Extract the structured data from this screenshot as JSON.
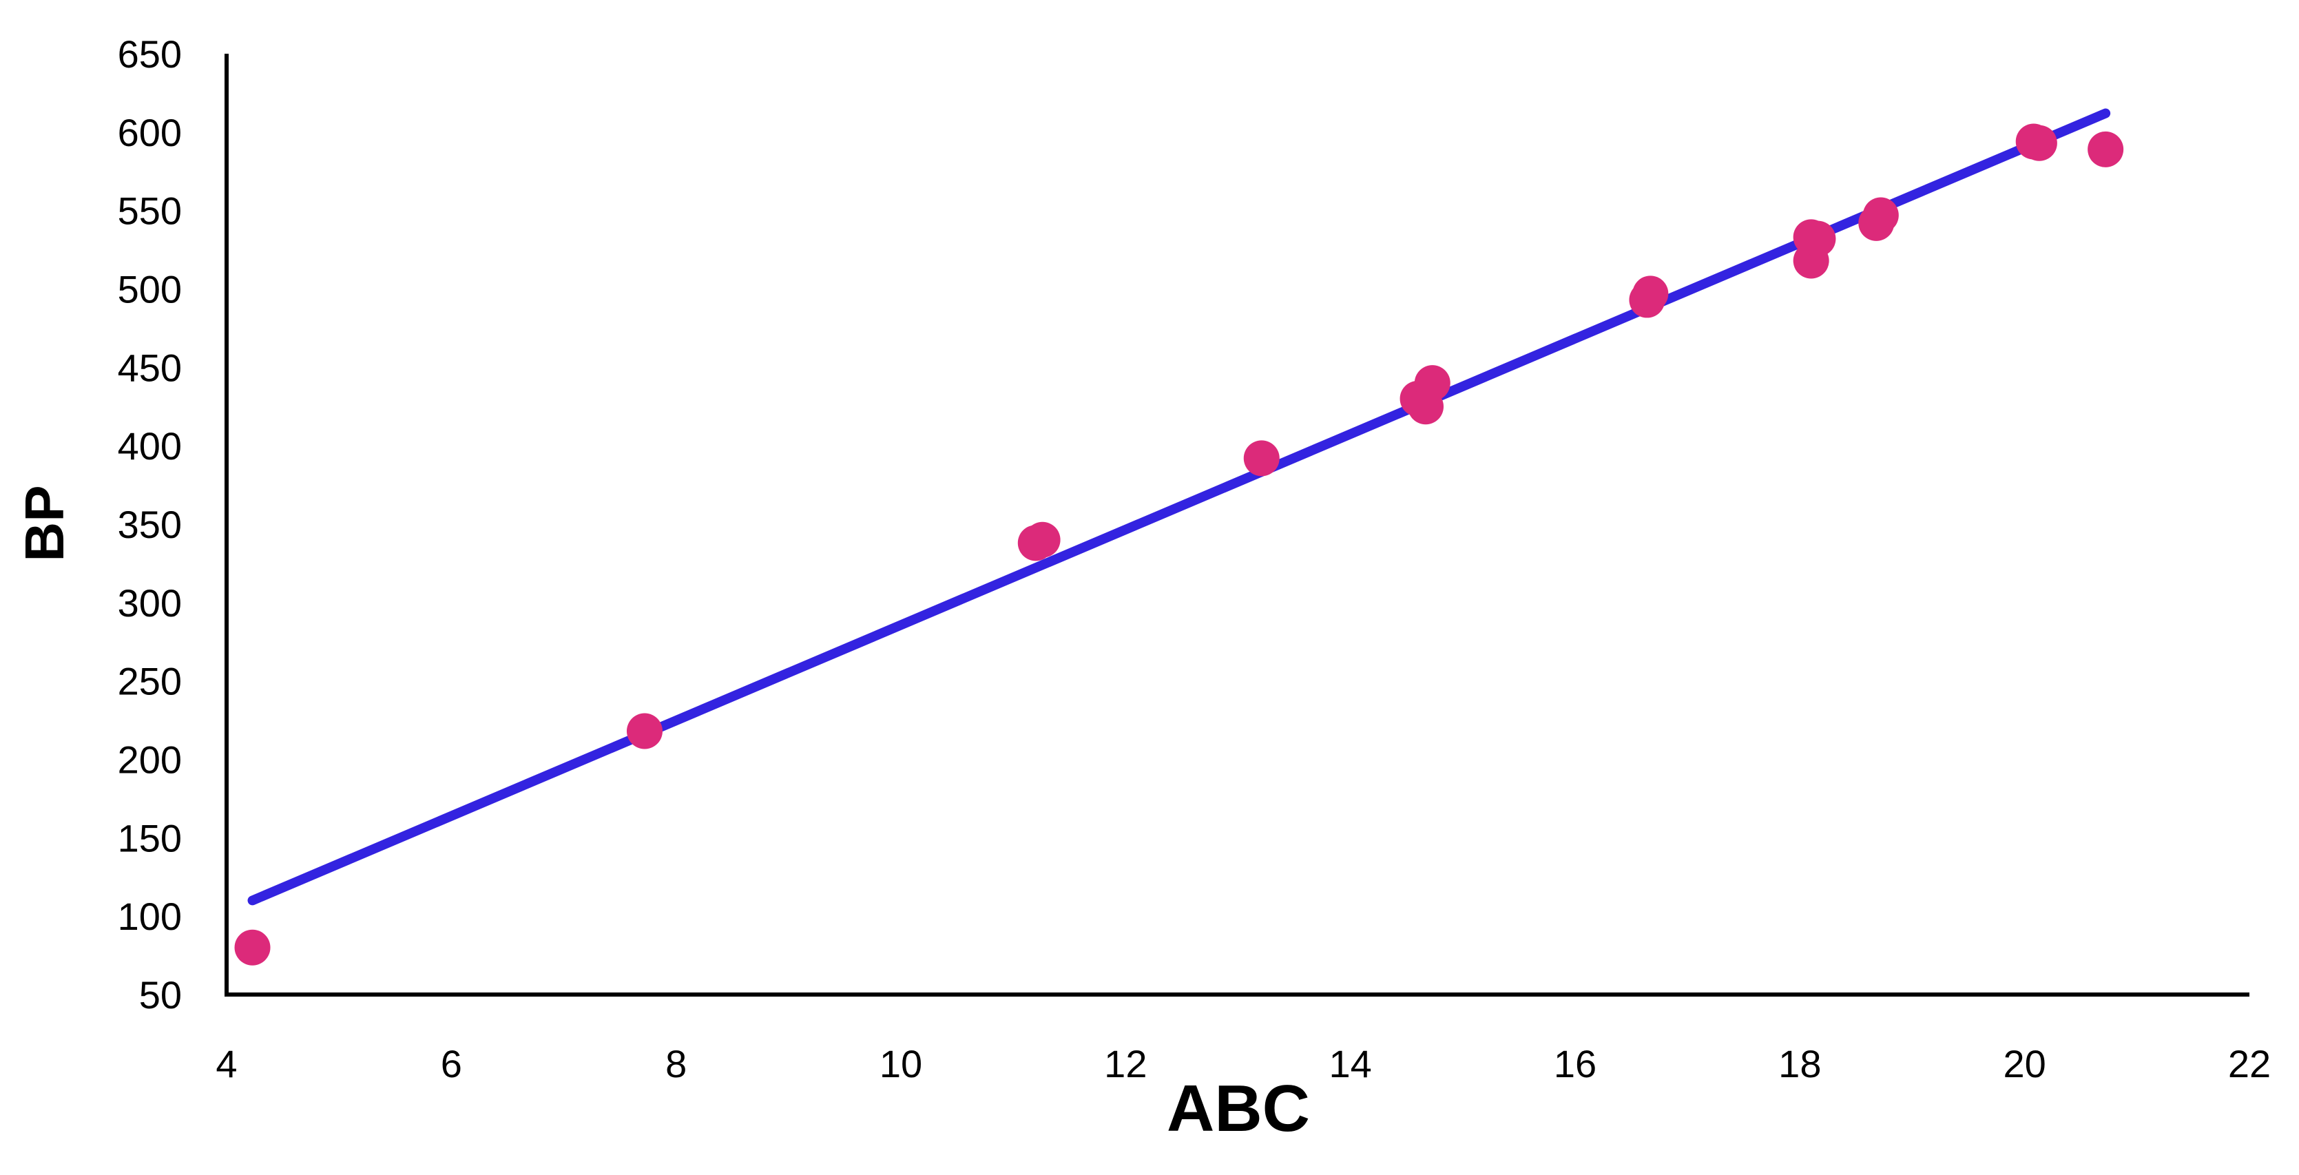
{
  "chart_data": {
    "type": "scatter",
    "title": "",
    "xlabel": "ABC",
    "ylabel": "BP",
    "xlim": [
      4,
      22
    ],
    "ylim": [
      50,
      650
    ],
    "x_ticks": [
      4,
      6,
      8,
      10,
      12,
      14,
      16,
      18,
      20,
      22
    ],
    "y_ticks": [
      50,
      100,
      150,
      200,
      250,
      300,
      350,
      400,
      450,
      500,
      550,
      600,
      650
    ],
    "grid": false,
    "legend": "none",
    "series": [
      {
        "points": [
          [
            4.23,
            80
          ],
          [
            7.72,
            218
          ],
          [
            11.2,
            338
          ],
          [
            11.26,
            340
          ],
          [
            13.21,
            392
          ],
          [
            14.6,
            430
          ],
          [
            14.67,
            425
          ],
          [
            14.73,
            440
          ],
          [
            16.64,
            493
          ],
          [
            16.67,
            497
          ],
          [
            18.1,
            518
          ],
          [
            18.1,
            533
          ],
          [
            18.16,
            532
          ],
          [
            18.68,
            542
          ],
          [
            18.72,
            547
          ],
          [
            20.08,
            594
          ],
          [
            20.13,
            593
          ],
          [
            20.72,
            589
          ]
        ],
        "color": "#DC2A7A"
      }
    ],
    "trendline": {
      "type": "linear",
      "from": [
        4.23,
        110
      ],
      "to": [
        20.72,
        612
      ],
      "color": "#3323E0"
    }
  }
}
